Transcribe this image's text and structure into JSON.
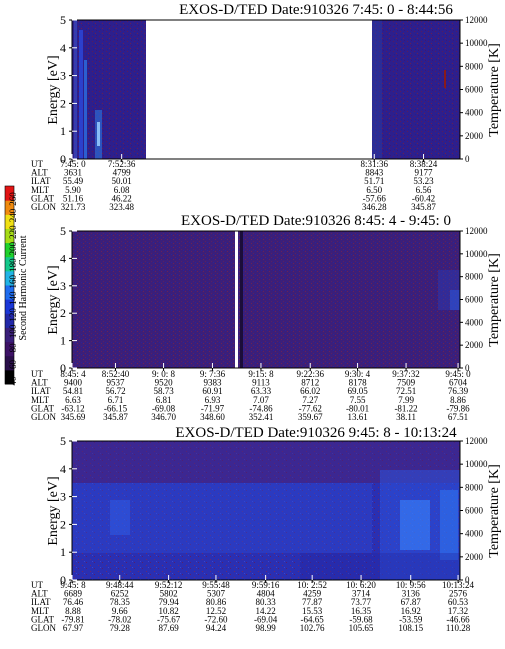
{
  "chart_data": [
    {
      "type": "heatmap",
      "title": "EXOS-D/TED   Date:910326  7:45: 0 - 8:44:56",
      "ylabel": "Energy [eV]",
      "y2label": "Temperature [K]",
      "ylim": [
        0,
        5
      ],
      "y2lim": [
        0,
        12000
      ],
      "yticks": [
        "0",
        "1",
        "2",
        "3",
        "4",
        "5"
      ],
      "y2ticks": [
        "0",
        "2000",
        "4000",
        "6000",
        "8000",
        "10000",
        "12000"
      ],
      "data_gap": {
        "from": "7:52:36",
        "to": "8:31:36"
      },
      "row_labels": [
        "UT",
        "ALT",
        "ILAT",
        "MLT",
        "GLAT",
        "GLON"
      ],
      "columns": [
        {
          "x": 0.0,
          "values": [
            "7:45: 0",
            "3631",
            "55.49",
            "5.90",
            "51.16",
            "321.73"
          ]
        },
        {
          "x": 0.128,
          "values": [
            "7:52:36",
            "4799",
            "50.01",
            "6.08",
            "46.22",
            "323.48"
          ]
        },
        {
          "x": 0.779,
          "values": [
            "8:31:36",
            "8843",
            "51.71",
            "6.50",
            "-57.66",
            "346.28"
          ]
        },
        {
          "x": 0.906,
          "values": [
            "8:38:24",
            "9177",
            "53.23",
            "6.56",
            "-60.42",
            "345.87"
          ]
        }
      ]
    },
    {
      "type": "heatmap",
      "title": "EXOS-D/TED   Date:910326  8:45: 4 - 9:45: 0",
      "ylabel": "Energy [eV]",
      "y2label": "Temperature [K]",
      "ylim": [
        0,
        5
      ],
      "y2lim": [
        0,
        12000
      ],
      "yticks": [
        "0",
        "1",
        "2",
        "3",
        "4",
        "5"
      ],
      "y2ticks": [
        "0",
        "2000",
        "4000",
        "6000",
        "8000",
        "10000",
        "12000"
      ],
      "row_labels": [
        "UT",
        "ALT",
        "ILAT",
        "MLT",
        "GLAT",
        "GLON"
      ],
      "columns": [
        {
          "x": 0.0,
          "values": [
            "8:45: 4",
            "9400",
            "54.81",
            "6.63",
            "-63.12",
            "345.69"
          ]
        },
        {
          "x": 0.112,
          "values": [
            "8:52:40",
            "9537",
            "56.72",
            "6.71",
            "-66.15",
            "345.87"
          ]
        },
        {
          "x": 0.236,
          "values": [
            "9: 0: 8",
            "9520",
            "58.73",
            "6.81",
            "-69.08",
            "346.70"
          ]
        },
        {
          "x": 0.362,
          "values": [
            "9: 7:36",
            "9383",
            "60.91",
            "6.93",
            "-71.97",
            "348.60"
          ]
        },
        {
          "x": 0.487,
          "values": [
            "9:15: 8",
            "9113",
            "63.33",
            "7.07",
            "-74.86",
            "352.41"
          ]
        },
        {
          "x": 0.614,
          "values": [
            "9:22:36",
            "8712",
            "66.02",
            "7.27",
            "-77.62",
            "359.67"
          ]
        },
        {
          "x": 0.736,
          "values": [
            "9:30: 4",
            "8178",
            "69.05",
            "7.55",
            "-80.01",
            "13.61"
          ]
        },
        {
          "x": 0.861,
          "values": [
            "9:37:32",
            "7509",
            "72.51",
            "7.99",
            "-81.22",
            "38.11"
          ]
        },
        {
          "x": 0.995,
          "values": [
            "9:45: 0",
            "6704",
            "76.39",
            "8.86",
            "-79.86",
            "67.51"
          ]
        }
      ]
    },
    {
      "type": "heatmap",
      "title": "EXOS-D/TED   Date:910326  9:45: 8 - 10:13:24",
      "ylabel": "Energy [eV]",
      "y2label": "Temperature [K]",
      "ylim": [
        0,
        5
      ],
      "y2lim": [
        0,
        12000
      ],
      "yticks": [
        "0",
        "1",
        "2",
        "3",
        "4",
        "5"
      ],
      "y2ticks": [
        "0",
        "2000",
        "4000",
        "6000",
        "8000",
        "10000",
        "12000"
      ],
      "row_labels": [
        "UT",
        "ALT",
        "ILAT",
        "MLT",
        "GLAT",
        "GLON"
      ],
      "columns": [
        {
          "x": 0.0,
          "values": [
            "9:45: 8",
            "6689",
            "76.46",
            "8.88",
            "-79.81",
            "67.97"
          ]
        },
        {
          "x": 0.123,
          "values": [
            "9:48:44",
            "6252",
            "78.35",
            "9.66",
            "-78.02",
            "79.28"
          ]
        },
        {
          "x": 0.249,
          "values": [
            "9:52:12",
            "5802",
            "79.94",
            "10.82",
            "-75.67",
            "87.69"
          ]
        },
        {
          "x": 0.371,
          "values": [
            "9:55:48",
            "5307",
            "80.86",
            "12.52",
            "-72.60",
            "94.24"
          ]
        },
        {
          "x": 0.499,
          "values": [
            "9:59:16",
            "4804",
            "80.33",
            "14.22",
            "-69.04",
            "98.99"
          ]
        },
        {
          "x": 0.619,
          "values": [
            "10: 2:52",
            "4259",
            "77.87",
            "15.53",
            "-64.65",
            "102.76"
          ]
        },
        {
          "x": 0.745,
          "values": [
            "10: 6:20",
            "3714",
            "73.77",
            "16.35",
            "-59.68",
            "105.65"
          ]
        },
        {
          "x": 0.873,
          "values": [
            "10: 9:56",
            "3136",
            "67.87",
            "16.92",
            "-53.59",
            "108.15"
          ]
        },
        {
          "x": 0.995,
          "values": [
            "10:13:24",
            "2576",
            "60.53",
            "17.32",
            "-46.66",
            "110.28"
          ]
        }
      ]
    }
  ],
  "colorbar": {
    "label": "Second Harmonic Current",
    "ticks": [
      "40",
      "60",
      "80",
      "100",
      "120",
      "140",
      "160",
      "180",
      "200",
      "220",
      "240",
      "260"
    ],
    "colors": [
      "#000000",
      "#2a0f4a",
      "#3d1266",
      "#3a1f7a",
      "#2228a8",
      "#1a37d8",
      "#1f6df0",
      "#21b4e6",
      "#13c98b",
      "#1fd22c",
      "#a6dc16",
      "#f0e014",
      "#f08a0e",
      "#e21414"
    ]
  }
}
